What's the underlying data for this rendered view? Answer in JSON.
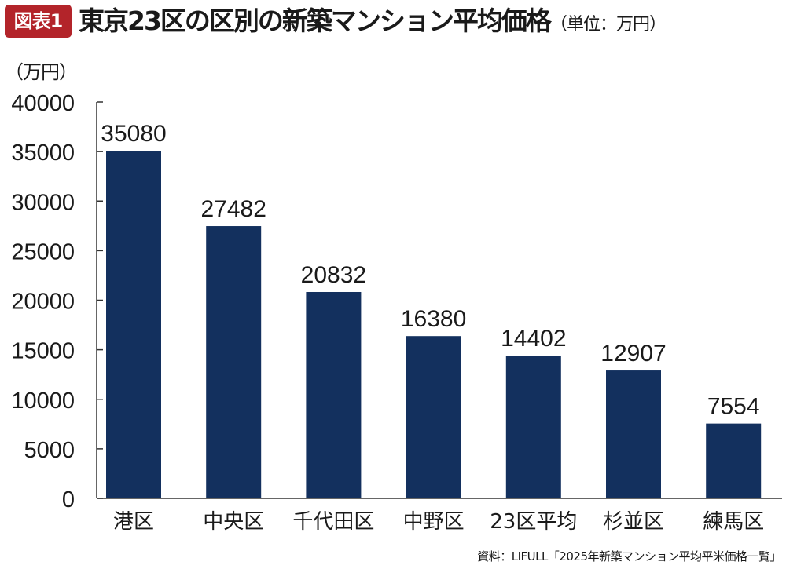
{
  "header": {
    "badge": "図表1",
    "title": "東京23区の区別の新築マンション平均価格",
    "unit": "（単位：万円）"
  },
  "y_unit_label": "（万円）",
  "source": "資料：LIFULL「2025年新築マンション平均平米価格一覧」",
  "colors": {
    "bar": "#13305e",
    "badge": "#b3242a",
    "axis": "#333333"
  },
  "chart_data": {
    "type": "bar",
    "title": "東京23区の区別の新築マンション平均価格",
    "ylabel": "（万円）",
    "xlabel": "",
    "categories": [
      "港区",
      "中央区",
      "千代田区",
      "中野区",
      "23区平均",
      "杉並区",
      "練馬区"
    ],
    "values": [
      35080,
      27482,
      20832,
      16380,
      14402,
      12907,
      7554
    ],
    "ylim": [
      0,
      40000
    ],
    "yticks": [
      0,
      5000,
      10000,
      15000,
      20000,
      25000,
      30000,
      35000,
      40000
    ],
    "grid": false,
    "data_labels": true
  }
}
